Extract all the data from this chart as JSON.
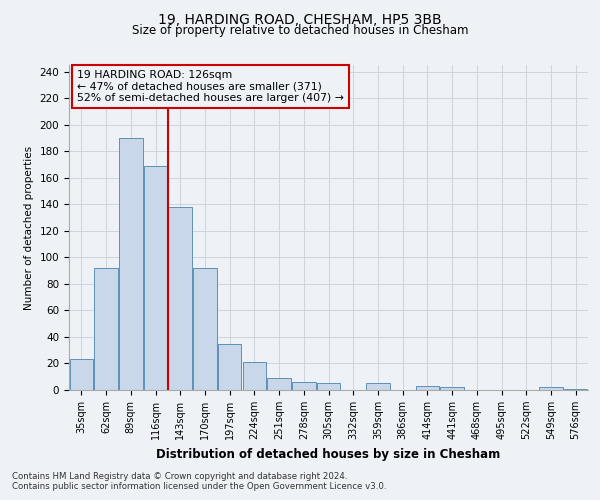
{
  "title": "19, HARDING ROAD, CHESHAM, HP5 3BB",
  "subtitle": "Size of property relative to detached houses in Chesham",
  "xlabel": "Distribution of detached houses by size in Chesham",
  "ylabel": "Number of detached properties",
  "bar_labels": [
    "35sqm",
    "62sqm",
    "89sqm",
    "116sqm",
    "143sqm",
    "170sqm",
    "197sqm",
    "224sqm",
    "251sqm",
    "278sqm",
    "305sqm",
    "332sqm",
    "359sqm",
    "386sqm",
    "414sqm",
    "441sqm",
    "468sqm",
    "495sqm",
    "522sqm",
    "549sqm",
    "576sqm"
  ],
  "bar_values": [
    23,
    92,
    190,
    169,
    138,
    92,
    35,
    21,
    9,
    6,
    5,
    0,
    5,
    0,
    3,
    2,
    0,
    0,
    0,
    2,
    1
  ],
  "bar_color": "#c8d8ea",
  "bar_edgecolor": "#6090b8",
  "vline_pos": 3.5,
  "vline_color": "#cc0000",
  "annotation_title": "19 HARDING ROAD: 126sqm",
  "annotation_line1": "← 47% of detached houses are smaller (371)",
  "annotation_line2": "52% of semi-detached houses are larger (407) →",
  "annotation_box_edgecolor": "#cc0000",
  "ylim": [
    0,
    245
  ],
  "yticks": [
    0,
    20,
    40,
    60,
    80,
    100,
    120,
    140,
    160,
    180,
    200,
    220,
    240
  ],
  "footer1": "Contains HM Land Registry data © Crown copyright and database right 2024.",
  "footer2": "Contains public sector information licensed under the Open Government Licence v3.0.",
  "bg_color": "#eef2f6",
  "grid_color": "#ccd5de"
}
